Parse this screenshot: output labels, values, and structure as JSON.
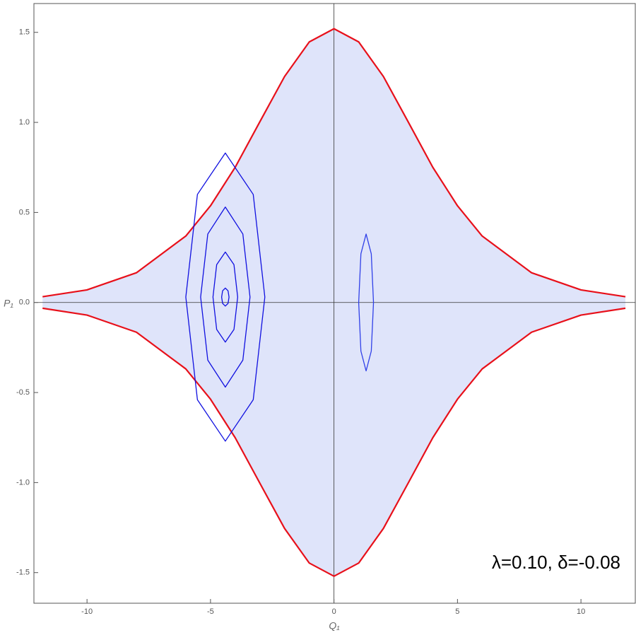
{
  "chart_data": {
    "type": "line",
    "x_label": "Q₁",
    "y_label": "P₁",
    "annotation": "λ=0.10, δ=-0.08",
    "xlim": [
      -12.15,
      12.2
    ],
    "ylim": [
      -1.67,
      1.66
    ],
    "xticks": [
      -10,
      -5,
      0,
      5,
      10
    ],
    "yticks": [
      -1.5,
      {
        "value": -1.0,
        "label": "-1.0"
      },
      -0.5,
      {
        "value": 0.0,
        "label": "0.0"
      },
      0.5,
      {
        "value": 1.0,
        "label": "1.0"
      },
      1.5
    ],
    "zero_axes": true,
    "sea_color": "#dfe4fa",
    "series": [
      {
        "color": "#e8101a",
        "closed": false,
        "x": [
          -11.8,
          -10,
          -8,
          -6,
          -5,
          -4,
          -3,
          -2,
          -1,
          0,
          1,
          2,
          3,
          4,
          5,
          6,
          8,
          10,
          11.8
        ],
        "values": [
          0.032,
          0.07,
          0.165,
          0.369,
          0.537,
          0.751,
          1.004,
          1.255,
          1.447,
          1.52,
          1.447,
          1.255,
          1.004,
          0.751,
          0.537,
          0.369,
          0.165,
          0.07,
          0.032
        ]
      },
      {
        "color": "#e8101a",
        "closed": false,
        "x": [
          -11.8,
          -10,
          -8,
          -6,
          -5,
          -4,
          -3,
          -2,
          -1,
          0,
          1,
          2,
          3,
          4,
          5,
          6,
          8,
          10,
          11.8
        ],
        "values": [
          -0.032,
          -0.07,
          -0.165,
          -0.369,
          -0.537,
          -0.751,
          -1.004,
          -1.255,
          -1.447,
          -1.52,
          -1.447,
          -1.255,
          -1.004,
          -0.751,
          -0.537,
          -0.369,
          -0.165,
          -0.07,
          -0.032
        ]
      },
      {
        "color": "#1010e0",
        "closed": true,
        "x": [
          -4.25,
          -4.29,
          -4.4,
          -4.51,
          -4.55,
          -4.51,
          -4.4,
          -4.29
        ],
        "values": [
          0.03,
          0.065,
          0.08,
          0.065,
          0.03,
          -0.005,
          -0.02,
          -0.005
        ]
      },
      {
        "color": "#1010e0",
        "closed": true,
        "x": [
          -3.9,
          -4.05,
          -4.4,
          -4.75,
          -4.9,
          -4.75,
          -4.4,
          -4.05
        ],
        "values": [
          0.03,
          0.21,
          0.28,
          0.21,
          0.03,
          -0.15,
          -0.22,
          -0.15
        ]
      },
      {
        "color": "#1010e0",
        "closed": true,
        "x": [
          -3.4,
          -3.69,
          -4.4,
          -5.11,
          -5.4,
          -5.11,
          -4.4,
          -3.69
        ],
        "values": [
          0.03,
          0.38,
          0.53,
          0.38,
          0.03,
          -0.32,
          -0.47,
          -0.32
        ]
      },
      {
        "color": "#1010e0",
        "closed": true,
        "x": [
          -2.8,
          -3.27,
          -4.4,
          -5.53,
          -6.0,
          -5.53,
          -4.4,
          -3.27
        ],
        "values": [
          0.03,
          0.6,
          0.83,
          0.6,
          0.03,
          -0.54,
          -0.77,
          -0.54
        ]
      },
      {
        "color": "#3040e8",
        "closed": true,
        "x": [
          1.6,
          1.51,
          1.3,
          1.09,
          1.0,
          1.09,
          1.3,
          1.51
        ],
        "values": [
          0,
          0.27,
          0.38,
          0.27,
          0,
          -0.27,
          -0.38,
          -0.27
        ]
      }
    ]
  }
}
